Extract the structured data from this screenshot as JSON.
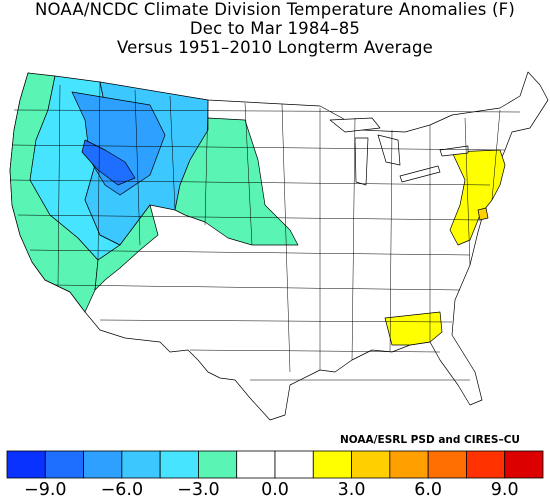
{
  "title": {
    "line1": "NOAA/NCDC Climate Division Temperature Anomalies (F)",
    "line2": "Dec to Mar 1984–85",
    "line3": "Versus 1951–2010 Longterm Average"
  },
  "credit": "NOAA/ESRL PSD and CIRES–CU",
  "legend": {
    "colors": [
      "#0a32ff",
      "#1e6eff",
      "#2ea0ff",
      "#3cc8ff",
      "#46e4ff",
      "#5af5b4",
      "#ffffff",
      "#ffffff",
      "#ffff00",
      "#ffd000",
      "#ffa000",
      "#ff6e00",
      "#ff3200",
      "#dc0000"
    ],
    "ticks": [
      "−9.0",
      "−6.0",
      "−3.0",
      "0.0",
      "3.0",
      "6.0",
      "9.0"
    ]
  },
  "map": {
    "colors": {
      "deep_blue": "#1e6eff",
      "mid_blue": "#2ea0ff",
      "light_blue": "#3cc8ff",
      "cyan": "#46e4ff",
      "green": "#5af5b4",
      "white": "#ffffff",
      "yellow": "#ffff00",
      "orange": "#ffd000",
      "lake": "#ffffff",
      "border": "#000000"
    }
  }
}
